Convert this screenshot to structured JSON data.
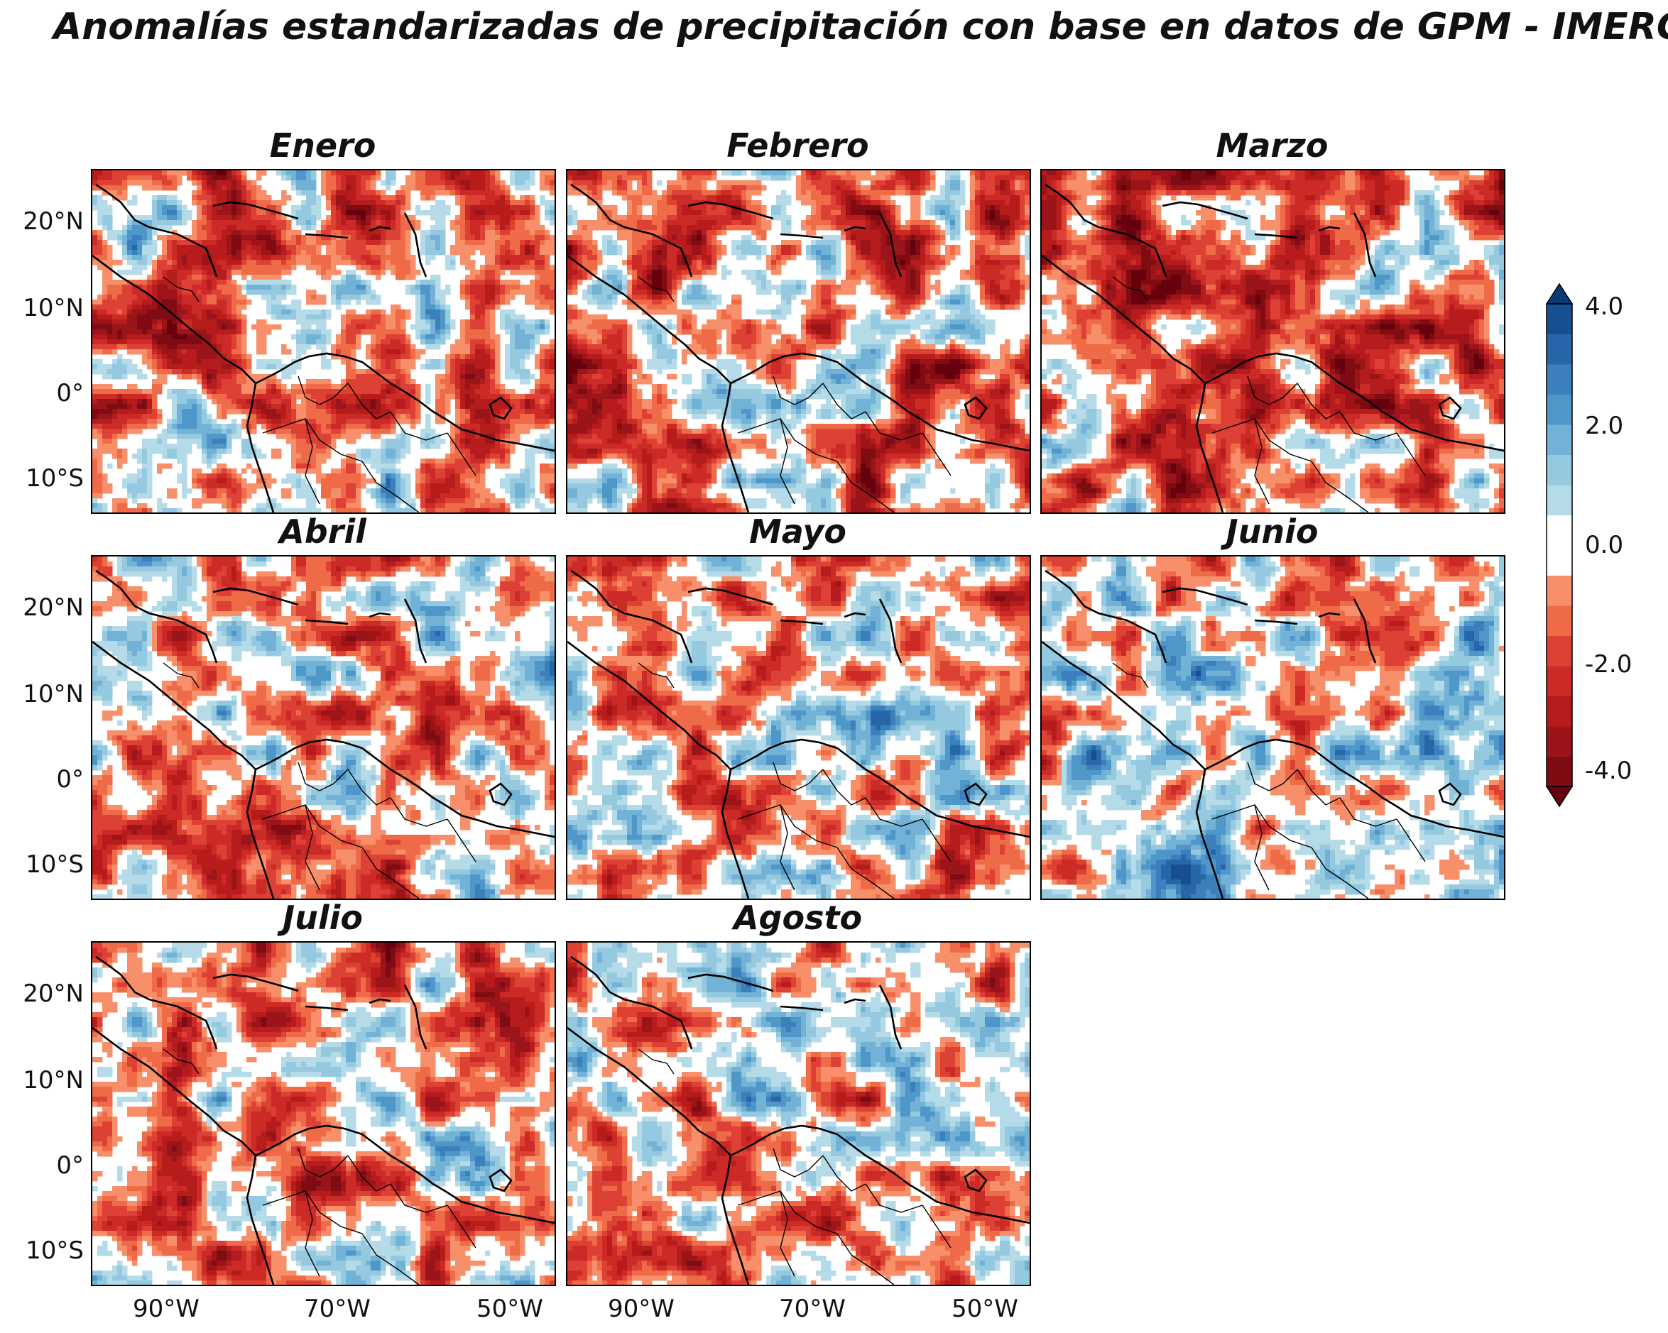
{
  "title": "Anomalías estandarizadas de precipitación con base en datos de GPM - IMERG",
  "panels": [
    {
      "name": "Enero",
      "bias": -0.35,
      "seed": 11
    },
    {
      "name": "Febrero",
      "bias": -0.45,
      "seed": 23
    },
    {
      "name": "Marzo",
      "bias": -0.55,
      "seed": 37
    },
    {
      "name": "Abril",
      "bias": -0.2,
      "seed": 41
    },
    {
      "name": "Mayo",
      "bias": -0.05,
      "seed": 53
    },
    {
      "name": "Junio",
      "bias": 0.1,
      "seed": 67
    },
    {
      "name": "Julio",
      "bias": -0.25,
      "seed": 79
    },
    {
      "name": "Agosto",
      "bias": -0.15,
      "seed": 83
    }
  ],
  "lat_labels": [
    "20°N",
    "10°N",
    "0°",
    "10°S"
  ],
  "lon_labels": [
    "90°W",
    "70°W",
    "50°W"
  ],
  "colorbar": {
    "labels": [
      "4.0",
      "2.0",
      "0.0",
      "-2.0",
      "-4.0"
    ],
    "range": [
      -4.0,
      4.0
    ],
    "colors": [
      "#67000d",
      "#7f0c12",
      "#9b1419",
      "#b71c1c",
      "#cb2a27",
      "#dd4034",
      "#ef6b48",
      "#f7906a",
      "#ffffff",
      "#ffffff",
      "#b5dbe8",
      "#94c9e0",
      "#72b2d6",
      "#4f97c8",
      "#3b80bc",
      "#2767a9",
      "#174f91",
      "#0b3a72"
    ]
  },
  "colors": {
    "ocean_light": "#f7906a",
    "land_line": "#000000",
    "background": "#ffffff"
  }
}
